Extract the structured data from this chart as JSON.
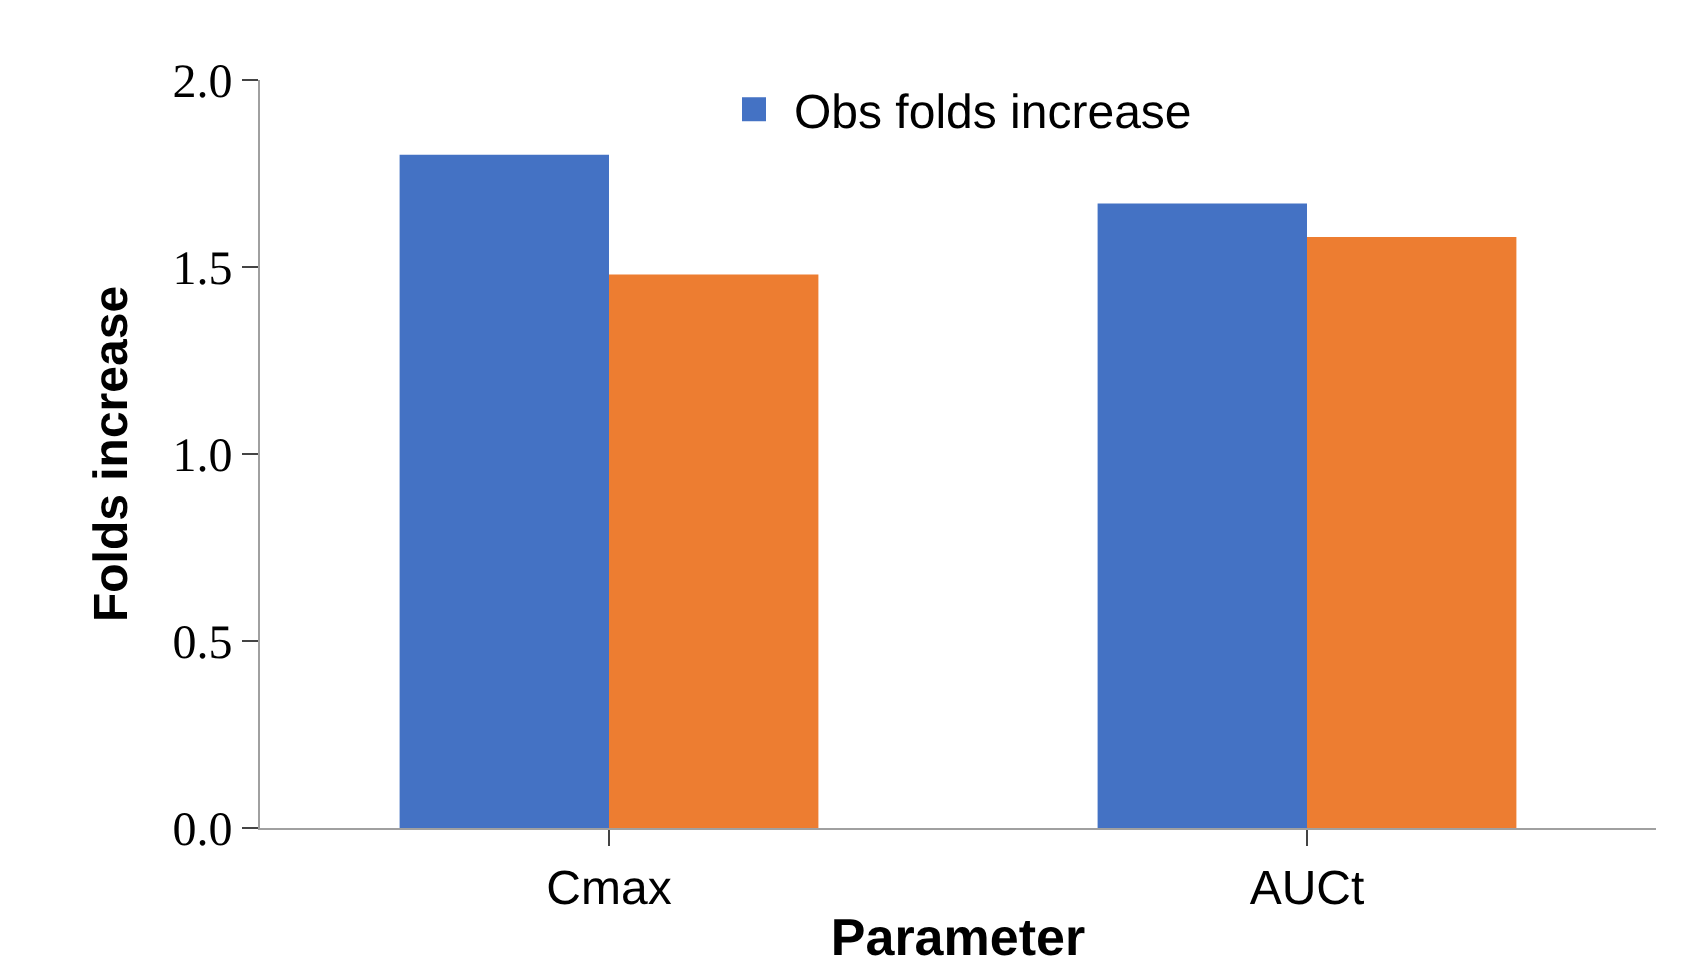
{
  "chart_data": {
    "type": "bar",
    "xlabel": "Parameter",
    "ylabel": "Folds increase",
    "categories": [
      "Cmax",
      "AUCt"
    ],
    "series": [
      {
        "name": "Obs folds increase",
        "color": "#4472c4",
        "values": [
          1.8,
          1.67
        ]
      },
      {
        "color": "#ed7d31",
        "values": [
          1.48,
          1.58
        ]
      }
    ],
    "ylim": [
      0,
      2.0
    ],
    "yticks": [
      {
        "value": 0,
        "label": "0.0"
      },
      {
        "value": 0.5,
        "label": "0.5"
      },
      {
        "value": 1.0,
        "label": "1.0"
      },
      {
        "value": 1.5,
        "label": "1.5"
      },
      {
        "value": 2.0,
        "label": "2.0"
      }
    ],
    "legend": "top"
  }
}
